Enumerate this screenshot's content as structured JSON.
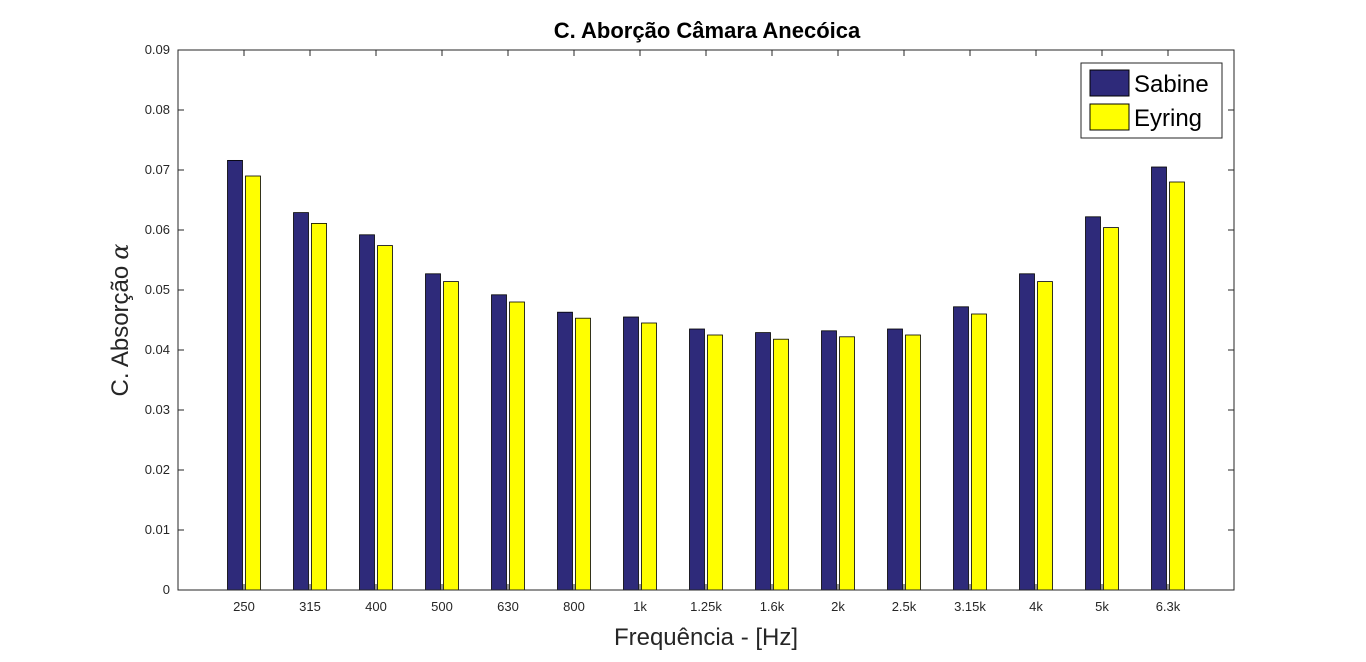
{
  "chart_data": {
    "type": "bar",
    "title": "C. Aborção Câmara Anecóica",
    "xlabel": "Frequência - [Hz]",
    "ylabel": "C. Absorção",
    "ylabel_symbol": "α",
    "categories": [
      "250",
      "315",
      "400",
      "500",
      "630",
      "800",
      "1k",
      "1.25k",
      "1.6k",
      "2k",
      "2.5k",
      "3.15k",
      "4k",
      "5k",
      "6.3k"
    ],
    "series": [
      {
        "name": "Sabine",
        "color": "#2e2a7a",
        "values": [
          0.0716,
          0.0629,
          0.0592,
          0.0527,
          0.0492,
          0.0463,
          0.0455,
          0.0435,
          0.0429,
          0.0432,
          0.0435,
          0.0472,
          0.0527,
          0.0622,
          0.0705
        ]
      },
      {
        "name": "Eyring",
        "color": "#ffff00",
        "values": [
          0.069,
          0.0611,
          0.0574,
          0.0514,
          0.048,
          0.0453,
          0.0445,
          0.0425,
          0.0418,
          0.0422,
          0.0425,
          0.046,
          0.0514,
          0.0604,
          0.068
        ]
      }
    ],
    "ylim": [
      0,
      0.09
    ],
    "yticks": [
      "0",
      "0.01",
      "0.02",
      "0.03",
      "0.04",
      "0.05",
      "0.06",
      "0.07",
      "0.08",
      "0.09"
    ],
    "grid": false,
    "legend_position": "top-right"
  }
}
